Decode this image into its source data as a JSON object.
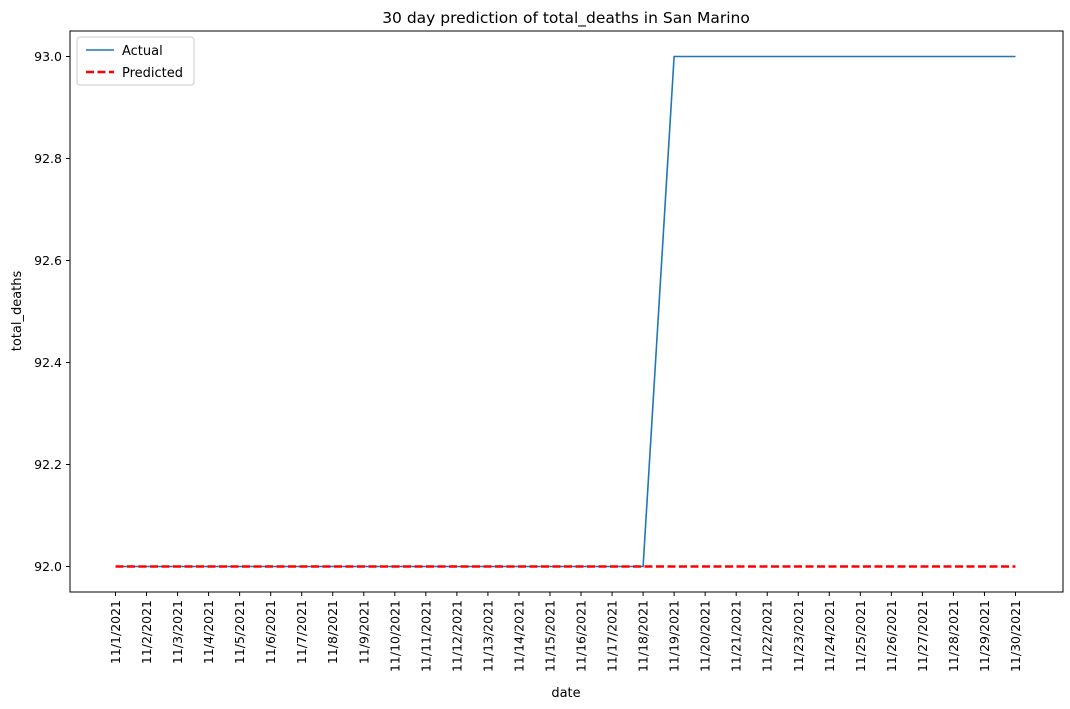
{
  "chart_data": {
    "type": "line",
    "title": "30 day prediction of total_deaths in San Marino",
    "xlabel": "date",
    "ylabel": "total_deaths",
    "x": [
      "11/1/2021",
      "11/2/2021",
      "11/3/2021",
      "11/4/2021",
      "11/5/2021",
      "11/6/2021",
      "11/7/2021",
      "11/8/2021",
      "11/9/2021",
      "11/10/2021",
      "11/11/2021",
      "11/12/2021",
      "11/13/2021",
      "11/14/2021",
      "11/15/2021",
      "11/16/2021",
      "11/17/2021",
      "11/18/2021",
      "11/19/2021",
      "11/20/2021",
      "11/21/2021",
      "11/22/2021",
      "11/23/2021",
      "11/24/2021",
      "11/25/2021",
      "11/26/2021",
      "11/27/2021",
      "11/28/2021",
      "11/29/2021",
      "11/30/2021"
    ],
    "series": [
      {
        "name": "Actual",
        "color": "#1f77b4",
        "style": "solid",
        "values": [
          92,
          92,
          92,
          92,
          92,
          92,
          92,
          92,
          92,
          92,
          92,
          92,
          92,
          92,
          92,
          92,
          92,
          92,
          93,
          93,
          93,
          93,
          93,
          93,
          93,
          93,
          93,
          93,
          93,
          93
        ]
      },
      {
        "name": "Predicted",
        "color": "#ff0000",
        "style": "dashed",
        "values": [
          92,
          92,
          92,
          92,
          92,
          92,
          92,
          92,
          92,
          92,
          92,
          92,
          92,
          92,
          92,
          92,
          92,
          92,
          92,
          92,
          92,
          92,
          92,
          92,
          92,
          92,
          92,
          92,
          92,
          92
        ]
      }
    ],
    "ylim": [
      91.95,
      93.05
    ],
    "yticks": [
      "92.0",
      "92.2",
      "92.4",
      "92.6",
      "92.8",
      "93.0"
    ],
    "ytick_values": [
      92.0,
      92.2,
      92.4,
      92.6,
      92.8,
      93.0
    ],
    "grid": false,
    "legend_position": "top-left"
  }
}
